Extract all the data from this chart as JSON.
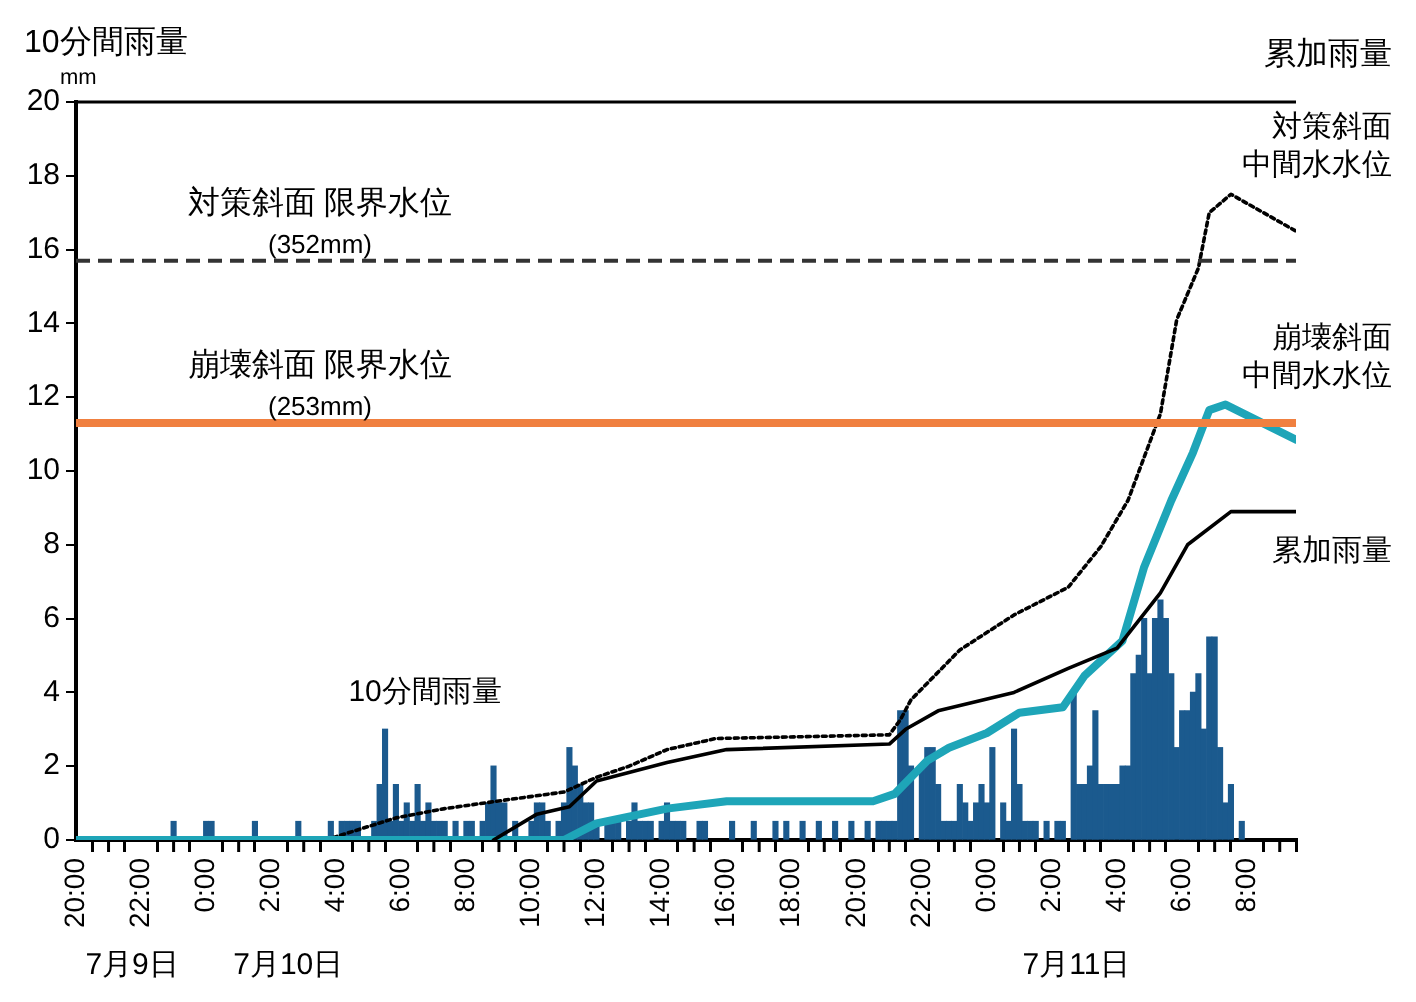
{
  "chart_data": {
    "type": "bar",
    "ylabel": "10分間雨量",
    "annotations": [
      "mm",
      "累加雨量",
      "7月9日",
      "7月10日",
      "7月11日"
    ],
    "xlim": [
      "--07-09T20:00",
      "--07-11T09:30"
    ],
    "xticks": [
      {
        "value": "--07-09T20:00",
        "label": "20:00"
      },
      {
        "value": "--07-09T21:00",
        "label": null
      },
      {
        "value": "--07-09T22:00",
        "label": "22:00"
      },
      {
        "value": "--07-09T23:00",
        "label": null
      },
      {
        "value": "--07-10T00:00",
        "label": "0:00"
      },
      {
        "value": "--07-10T01:00",
        "label": null
      },
      {
        "value": "--07-10T02:00",
        "label": "2:00"
      },
      {
        "value": "--07-10T03:00",
        "label": null
      },
      {
        "value": "--07-10T04:00",
        "label": "4:00"
      },
      {
        "value": "--07-10T05:00",
        "label": null
      },
      {
        "value": "--07-10T06:00",
        "label": "6:00"
      },
      {
        "value": "--07-10T07:00",
        "label": null
      },
      {
        "value": "--07-10T08:00",
        "label": "8:00"
      },
      {
        "value": "--07-10T09:00",
        "label": null
      },
      {
        "value": "--07-10T10:00",
        "label": "10:00"
      },
      {
        "value": "--07-10T11:00",
        "label": null
      },
      {
        "value": "--07-10T12:00",
        "label": "12:00"
      },
      {
        "value": "--07-10T13:00",
        "label": null
      },
      {
        "value": "--07-10T14:00",
        "label": "14:00"
      },
      {
        "value": "--07-10T15:00",
        "label": null
      },
      {
        "value": "--07-10T16:00",
        "label": "16:00"
      },
      {
        "value": "--07-10T17:00",
        "label": null
      },
      {
        "value": "--07-10T18:00",
        "label": "18:00"
      },
      {
        "value": "--07-10T19:00",
        "label": null
      },
      {
        "value": "--07-10T20:00",
        "label": "20:00"
      },
      {
        "value": "--07-10T21:00",
        "label": null
      },
      {
        "value": "--07-10T22:00",
        "label": "22:00"
      },
      {
        "value": "--07-10T23:00",
        "label": null
      },
      {
        "value": "--07-11T00:00",
        "label": "0:00"
      },
      {
        "value": "--07-11T01:00",
        "label": null
      },
      {
        "value": "--07-11T02:00",
        "label": "2:00"
      },
      {
        "value": "--07-11T03:00",
        "label": null
      },
      {
        "value": "--07-11T04:00",
        "label": "4:00"
      },
      {
        "value": "--07-11T05:00",
        "label": null
      },
      {
        "value": "--07-11T06:00",
        "label": "6:00"
      },
      {
        "value": "--07-11T07:00",
        "label": null
      },
      {
        "value": "--07-11T08:00",
        "label": "8:00"
      },
      {
        "value": "--07-11T09:00",
        "label": null
      }
    ],
    "ylim": [
      0,
      20
    ],
    "yticks": [
      0,
      2,
      4,
      6,
      8,
      10,
      12,
      14,
      16,
      18,
      20
    ],
    "ref_lines": [
      {
        "axis": "y",
        "value": 15.7,
        "label": "対策斜面 限界水位 (352mm)",
        "color": "#333333",
        "line_style": "dashed"
      },
      {
        "axis": "y",
        "value": 11.3,
        "label": "崩壊斜面 限界水位 (253mm)",
        "color": "#f08040",
        "line_style": "solid"
      }
    ],
    "series": [
      {
        "name": "10分間雨量",
        "color": "#1b5a8e",
        "x": [
          "--07-09T23:00",
          "--07-10T00:00",
          "--07-10T00:10",
          "--07-10T01:30",
          "--07-10T02:50",
          "--07-10T03:50",
          "--07-10T04:10",
          "--07-10T04:20",
          "--07-10T04:30",
          "--07-10T04:40",
          "--07-10T05:10",
          "--07-10T05:20",
          "--07-10T05:30",
          "--07-10T05:40",
          "--07-10T05:50",
          "--07-10T06:00",
          "--07-10T06:10",
          "--07-10T06:20",
          "--07-10T06:30",
          "--07-10T06:40",
          "--07-10T06:50",
          "--07-10T07:00",
          "--07-10T07:10",
          "--07-10T07:20",
          "--07-10T07:40",
          "--07-10T08:00",
          "--07-10T08:10",
          "--07-10T08:30",
          "--07-10T08:40",
          "--07-10T08:50",
          "--07-10T09:00",
          "--07-10T09:10",
          "--07-10T09:30",
          "--07-10T10:00",
          "--07-10T10:10",
          "--07-10T10:20",
          "--07-10T10:30",
          "--07-10T10:50",
          "--07-10T11:00",
          "--07-10T11:10",
          "--07-10T11:20",
          "--07-10T11:30",
          "--07-10T11:40",
          "--07-10T11:50",
          "--07-10T12:00",
          "--07-10T12:20",
          "--07-10T12:30",
          "--07-10T12:40",
          "--07-10T13:00",
          "--07-10T13:10",
          "--07-10T13:20",
          "--07-10T13:30",
          "--07-10T13:40",
          "--07-10T14:00",
          "--07-10T14:10",
          "--07-10T14:20",
          "--07-10T14:30",
          "--07-10T14:40",
          "--07-10T15:10",
          "--07-10T15:20",
          "--07-10T16:10",
          "--07-10T16:50",
          "--07-10T17:30",
          "--07-10T17:50",
          "--07-10T18:20",
          "--07-10T18:50",
          "--07-10T19:20",
          "--07-10T19:50",
          "--07-10T20:20",
          "--07-10T20:40",
          "--07-10T20:50",
          "--07-10T21:00",
          "--07-10T21:10",
          "--07-10T21:20",
          "--07-10T21:30",
          "--07-10T21:40",
          "--07-10T22:00",
          "--07-10T22:10",
          "--07-10T22:20",
          "--07-10T22:30",
          "--07-10T22:40",
          "--07-10T22:50",
          "--07-10T23:00",
          "--07-10T23:10",
          "--07-10T23:20",
          "--07-10T23:30",
          "--07-10T23:40",
          "--07-10T23:50",
          "--07-11T00:00",
          "--07-11T00:10",
          "--07-11T00:30",
          "--07-11T00:40",
          "--07-11T00:50",
          "--07-11T01:00",
          "--07-11T01:10",
          "--07-11T01:20",
          "--07-11T01:30",
          "--07-11T01:50",
          "--07-11T02:10",
          "--07-11T02:20",
          "--07-11T02:40",
          "--07-11T02:50",
          "--07-11T03:00",
          "--07-11T03:10",
          "--07-11T03:20",
          "--07-11T03:30",
          "--07-11T03:40",
          "--07-11T03:50",
          "--07-11T04:00",
          "--07-11T04:10",
          "--07-11T04:20",
          "--07-11T04:30",
          "--07-11T04:40",
          "--07-11T04:50",
          "--07-11T05:00",
          "--07-11T05:10",
          "--07-11T05:20",
          "--07-11T05:30",
          "--07-11T05:40",
          "--07-11T05:50",
          "--07-11T06:00",
          "--07-11T06:10",
          "--07-11T06:20",
          "--07-11T06:30",
          "--07-11T06:40",
          "--07-11T06:50",
          "--07-11T07:00",
          "--07-11T07:10",
          "--07-11T07:20",
          "--07-11T07:30",
          "--07-11T07:50"
        ],
        "values": [
          0.5,
          0.5,
          0.5,
          0.5,
          0.5,
          0.5,
          0.5,
          0.5,
          0.5,
          0.5,
          0.5,
          1.5,
          3.0,
          0.5,
          1.5,
          0.5,
          1.0,
          0.5,
          1.5,
          0.5,
          1.0,
          0.5,
          0.5,
          0.5,
          0.5,
          0.5,
          0.5,
          0.5,
          1.0,
          2.0,
          1.0,
          1.0,
          0.5,
          0.5,
          1.0,
          1.0,
          0.5,
          0.5,
          1.0,
          2.5,
          2.0,
          1.5,
          1.0,
          1.0,
          0.5,
          0.5,
          0.5,
          0.5,
          0.5,
          1.0,
          0.5,
          0.5,
          0.5,
          0.5,
          1.0,
          0.5,
          0.5,
          0.5,
          0.5,
          0.5,
          0.5,
          0.5,
          0.5,
          0.5,
          0.5,
          0.5,
          0.5,
          0.5,
          0.5,
          0.5,
          0.5,
          0.5,
          0.5,
          3.5,
          3.5,
          2.0,
          2.0,
          2.5,
          2.5,
          1.5,
          0.5,
          0.5,
          0.5,
          1.5,
          1.0,
          0.5,
          1.0,
          1.5,
          1.0,
          2.5,
          1.0,
          0.5,
          3.0,
          1.5,
          0.5,
          0.5,
          0.5,
          0.5,
          0.5,
          0.5,
          4.0,
          1.5,
          1.5,
          2.0,
          3.5,
          1.5,
          1.5,
          1.5,
          1.5,
          2.0,
          2.0,
          4.5,
          5.0,
          6.0,
          4.5,
          6.0,
          6.5,
          6.0,
          4.5,
          2.5,
          3.5,
          3.5,
          4.0,
          4.5,
          3.0,
          5.5,
          5.5,
          2.5,
          1.0,
          1.5,
          0.5
        ]
      },
      {
        "type": "line",
        "name": "対策斜面中間水水位",
        "color": "#000000",
        "line_style": "dotted",
        "x": [
          "--07-10T03:40",
          "--07-10T05:50",
          "--07-10T07:20",
          "--07-10T09:20",
          "--07-10T11:00",
          "--07-10T12:00",
          "--07-10T13:00",
          "--07-10T14:10",
          "--07-10T15:40",
          "--07-10T21:00",
          "--07-10T21:20",
          "--07-10T21:40",
          "--07-10T23:10",
          "--07-11T00:50",
          "--07-11T02:30",
          "--07-11T03:30",
          "--07-11T04:20",
          "--07-11T05:20",
          "--07-11T05:50",
          "--07-11T06:30",
          "--07-11T06:50",
          "--07-11T07:30",
          "--07-11T09:30"
        ],
        "values": [
          0,
          0.6,
          0.85,
          1.1,
          1.3,
          1.7,
          2.0,
          2.45,
          2.75,
          2.85,
          3.25,
          3.8,
          5.15,
          6.1,
          6.85,
          7.95,
          9.2,
          11.55,
          14.1,
          15.5,
          17.0,
          17.5,
          16.5
        ]
      },
      {
        "type": "line",
        "name": "崩壊斜面中間水水位",
        "color": "#1ea5b8",
        "line_style": "solid",
        "x": [
          "--07-09T20:00",
          "--07-10T11:00",
          "--07-10T12:00",
          "--07-10T14:10",
          "--07-10T16:00",
          "--07-10T20:30",
          "--07-10T21:10",
          "--07-10T22:10",
          "--07-10T22:50",
          "--07-11T00:00",
          "--07-11T01:00",
          "--07-11T02:20",
          "--07-11T03:00",
          "--07-11T04:10",
          "--07-11T04:50",
          "--07-11T05:40",
          "--07-11T06:20",
          "--07-11T06:50",
          "--07-11T07:20",
          "--07-11T09:30"
        ],
        "values": [
          0,
          0,
          0.45,
          0.85,
          1.05,
          1.05,
          1.25,
          2.15,
          2.5,
          2.9,
          3.45,
          3.6,
          4.45,
          5.4,
          7.4,
          9.2,
          10.5,
          11.65,
          11.8,
          10.85
        ]
      },
      {
        "type": "line",
        "name": "累加雨量",
        "color": "#000000",
        "line_style": "solid",
        "x": [
          "--07-10T08:50",
          "--07-10T10:10",
          "--07-10T11:10",
          "--07-10T12:00",
          "--07-10T14:10",
          "--07-10T16:00",
          "--07-10T21:00",
          "--07-10T21:30",
          "--07-10T22:30",
          "--07-11T00:50",
          "--07-11T02:30",
          "--07-11T04:00",
          "--07-11T05:20",
          "--07-11T06:10",
          "--07-11T07:30",
          "--07-11T09:30"
        ],
        "values": [
          0,
          0.7,
          0.9,
          1.6,
          2.1,
          2.45,
          2.6,
          3.0,
          3.5,
          4.0,
          4.65,
          5.2,
          6.7,
          8.0,
          8.9,
          8.9
        ]
      }
    ]
  }
}
